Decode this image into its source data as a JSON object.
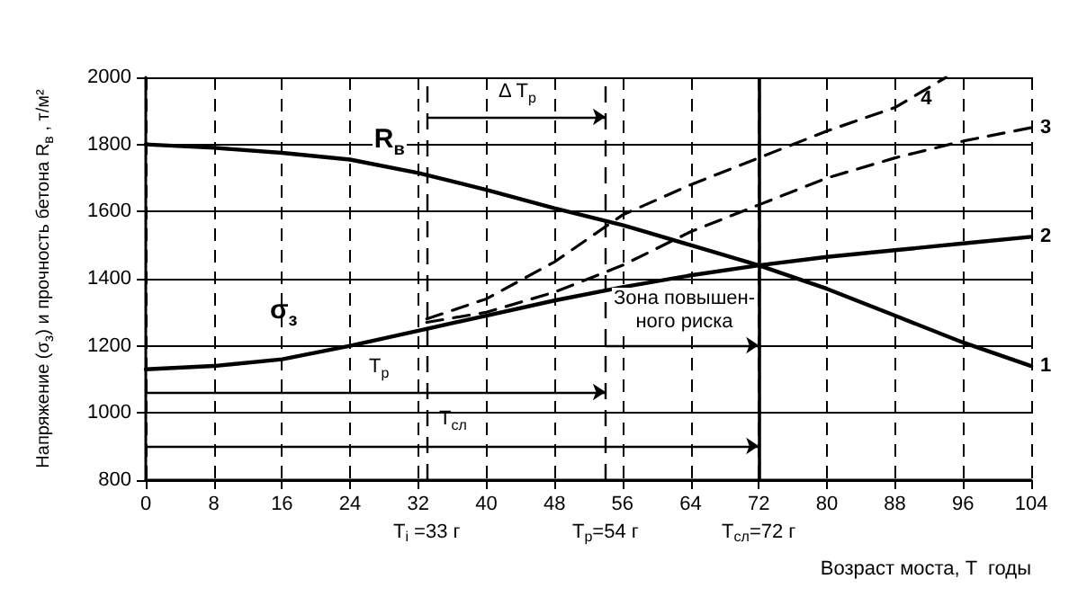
{
  "chart_data": {
    "type": "line",
    "xlabel": "Возраст моста, T  годы",
    "ylabel": "Напряжение (σ$_{з}$) и прочность бетона R$_{в}$ , т/м²",
    "xlim": [
      0,
      104
    ],
    "xticks": [
      0,
      8,
      16,
      24,
      32,
      40,
      48,
      56,
      64,
      72,
      80,
      88,
      96,
      104
    ],
    "ylim": [
      800,
      2000
    ],
    "yticks": [
      800,
      1000,
      1200,
      1400,
      1600,
      1800,
      2000
    ],
    "grid": true,
    "legend": false,
    "marker": "none",
    "series": [
      {
        "name": "1",
        "color": "#000000",
        "line_style": "solid",
        "x": [
          0,
          8,
          16,
          24,
          32,
          40,
          48,
          56,
          64,
          72,
          80,
          88,
          96,
          104
        ],
        "values": [
          1800,
          1790,
          1775,
          1755,
          1715,
          1665,
          1610,
          1560,
          1500,
          1440,
          1370,
          1290,
          1210,
          1140
        ]
      },
      {
        "name": "2",
        "color": "#000000",
        "line_style": "solid",
        "x": [
          0,
          8,
          16,
          24,
          32,
          40,
          48,
          56,
          64,
          72,
          80,
          88,
          96,
          104
        ],
        "values": [
          1130,
          1140,
          1160,
          1200,
          1245,
          1290,
          1335,
          1375,
          1410,
          1440,
          1465,
          1485,
          1505,
          1525
        ]
      },
      {
        "name": "3",
        "color": "#000000",
        "line_style": "dashed",
        "x": [
          33,
          40,
          48,
          56,
          64,
          72,
          80,
          88,
          96,
          104
        ],
        "values": [
          1270,
          1300,
          1360,
          1440,
          1540,
          1620,
          1700,
          1760,
          1810,
          1850
        ]
      },
      {
        "name": "4",
        "color": "#000000",
        "line_style": "dashed",
        "x": [
          33,
          40,
          48,
          56,
          64,
          72,
          80,
          88,
          94
        ],
        "values": [
          1280,
          1340,
          1450,
          1590,
          1680,
          1760,
          1840,
          1910,
          2000
        ]
      }
    ],
    "ref_lines": [
      {
        "axis": "x",
        "value": 33,
        "label": "T$_{i}$ =33 г",
        "line_style": "dashed"
      },
      {
        "axis": "x",
        "value": 54,
        "label": "T$_{p}$=54 г",
        "line_style": "dashed"
      },
      {
        "axis": "x",
        "value": 72,
        "label": "T$_{сл}$=72 г",
        "line_style": "solid"
      }
    ],
    "annotations": [
      {
        "text": "R$_{в}$",
        "x": 30,
        "y": 1725
      },
      "σ$_{з}$",
      "Δ T$_{p}$",
      "T$_{p}$",
      "T$_{сл}$",
      "Зона повышен-\nного риска"
    ]
  }
}
